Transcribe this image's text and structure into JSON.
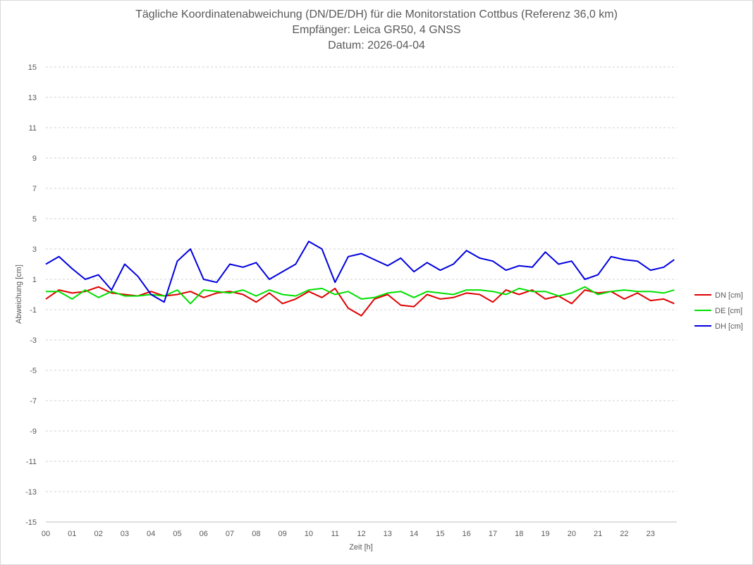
{
  "chart": {
    "title": "Tägliche Koordinatenabweichung (DN/DE/DH) für die Monitorstation Cottbus (Referenz 36,0 km)",
    "subtitle": "Empfänger: Leica GR50, 4 GNSS",
    "date_line": "Datum: 2026-04-04",
    "xlabel": "Zeit [h]",
    "ylabel": "Abweichung [cm]"
  },
  "chart_data": {
    "type": "line",
    "title": "Tägliche Koordinatenabweichung (DN/DE/DH) für die Monitorstation Cottbus (Referenz 36,0 km)",
    "xlabel": "Zeit [h]",
    "ylabel": "Abweichung [cm]",
    "xlim": [
      0,
      24
    ],
    "ylim": [
      -15,
      15
    ],
    "x_ticks": [
      "00",
      "01",
      "02",
      "03",
      "04",
      "05",
      "06",
      "07",
      "08",
      "09",
      "10",
      "11",
      "12",
      "13",
      "14",
      "15",
      "16",
      "17",
      "18",
      "19",
      "20",
      "21",
      "22",
      "23"
    ],
    "y_ticks": [
      15,
      13,
      11,
      9,
      7,
      5,
      3,
      1,
      -1,
      -3,
      -5,
      -7,
      -9,
      -11,
      -13,
      -15
    ],
    "grid": "horizontal dashed",
    "legend": "right",
    "x": [
      0,
      0.5,
      1,
      1.5,
      2,
      2.5,
      3,
      3.5,
      4,
      4.5,
      5,
      5.5,
      6,
      6.5,
      7,
      7.5,
      8,
      8.5,
      9,
      9.5,
      10,
      10.5,
      11,
      11.5,
      12,
      12.5,
      13,
      13.5,
      14,
      14.5,
      15,
      15.5,
      16,
      16.5,
      17,
      17.5,
      18,
      18.5,
      19,
      19.5,
      20,
      20.5,
      21,
      21.5,
      22,
      22.5,
      23,
      23.5,
      23.9
    ],
    "series": [
      {
        "name": "DN [cm]",
        "color": "#e00000",
        "values": [
          -0.3,
          0.3,
          0.1,
          0.2,
          0.5,
          0.1,
          0.0,
          -0.1,
          0.2,
          -0.1,
          0.0,
          0.2,
          -0.2,
          0.1,
          0.2,
          0.0,
          -0.5,
          0.1,
          -0.6,
          -0.3,
          0.2,
          -0.2,
          0.4,
          -0.9,
          -1.4,
          -0.3,
          0.0,
          -0.7,
          -0.8,
          0.0,
          -0.3,
          -0.2,
          0.1,
          0.0,
          -0.5,
          0.3,
          0.0,
          0.3,
          -0.3,
          -0.1,
          -0.6,
          0.3,
          0.1,
          0.2,
          -0.3,
          0.1,
          -0.4,
          -0.3,
          -0.6
        ]
      },
      {
        "name": "DE [cm]",
        "color": "#00e000",
        "values": [
          0.2,
          0.2,
          -0.3,
          0.3,
          -0.2,
          0.2,
          -0.1,
          -0.1,
          0.0,
          -0.1,
          0.3,
          -0.6,
          0.3,
          0.2,
          0.1,
          0.3,
          -0.1,
          0.3,
          0.0,
          -0.1,
          0.3,
          0.4,
          0.0,
          0.2,
          -0.3,
          -0.2,
          0.1,
          0.2,
          -0.2,
          0.2,
          0.1,
          0.0,
          0.3,
          0.3,
          0.2,
          0.0,
          0.4,
          0.2,
          0.2,
          -0.1,
          0.1,
          0.5,
          0.0,
          0.2,
          0.3,
          0.2,
          0.2,
          0.1,
          0.3
        ]
      },
      {
        "name": "DH [cm]",
        "color": "#0000e0",
        "values": [
          2.0,
          2.5,
          1.7,
          1.0,
          1.3,
          0.3,
          2.0,
          1.2,
          0.0,
          -0.5,
          2.2,
          3.0,
          1.0,
          0.8,
          2.0,
          1.8,
          2.1,
          1.0,
          1.5,
          2.0,
          3.5,
          3.0,
          0.8,
          2.5,
          2.7,
          2.3,
          1.9,
          2.4,
          1.5,
          2.1,
          1.6,
          2.0,
          2.9,
          2.4,
          2.2,
          1.6,
          1.9,
          1.8,
          2.8,
          2.0,
          2.2,
          1.0,
          1.3,
          2.5,
          2.3,
          2.2,
          1.6,
          1.8,
          2.3
        ]
      }
    ]
  }
}
